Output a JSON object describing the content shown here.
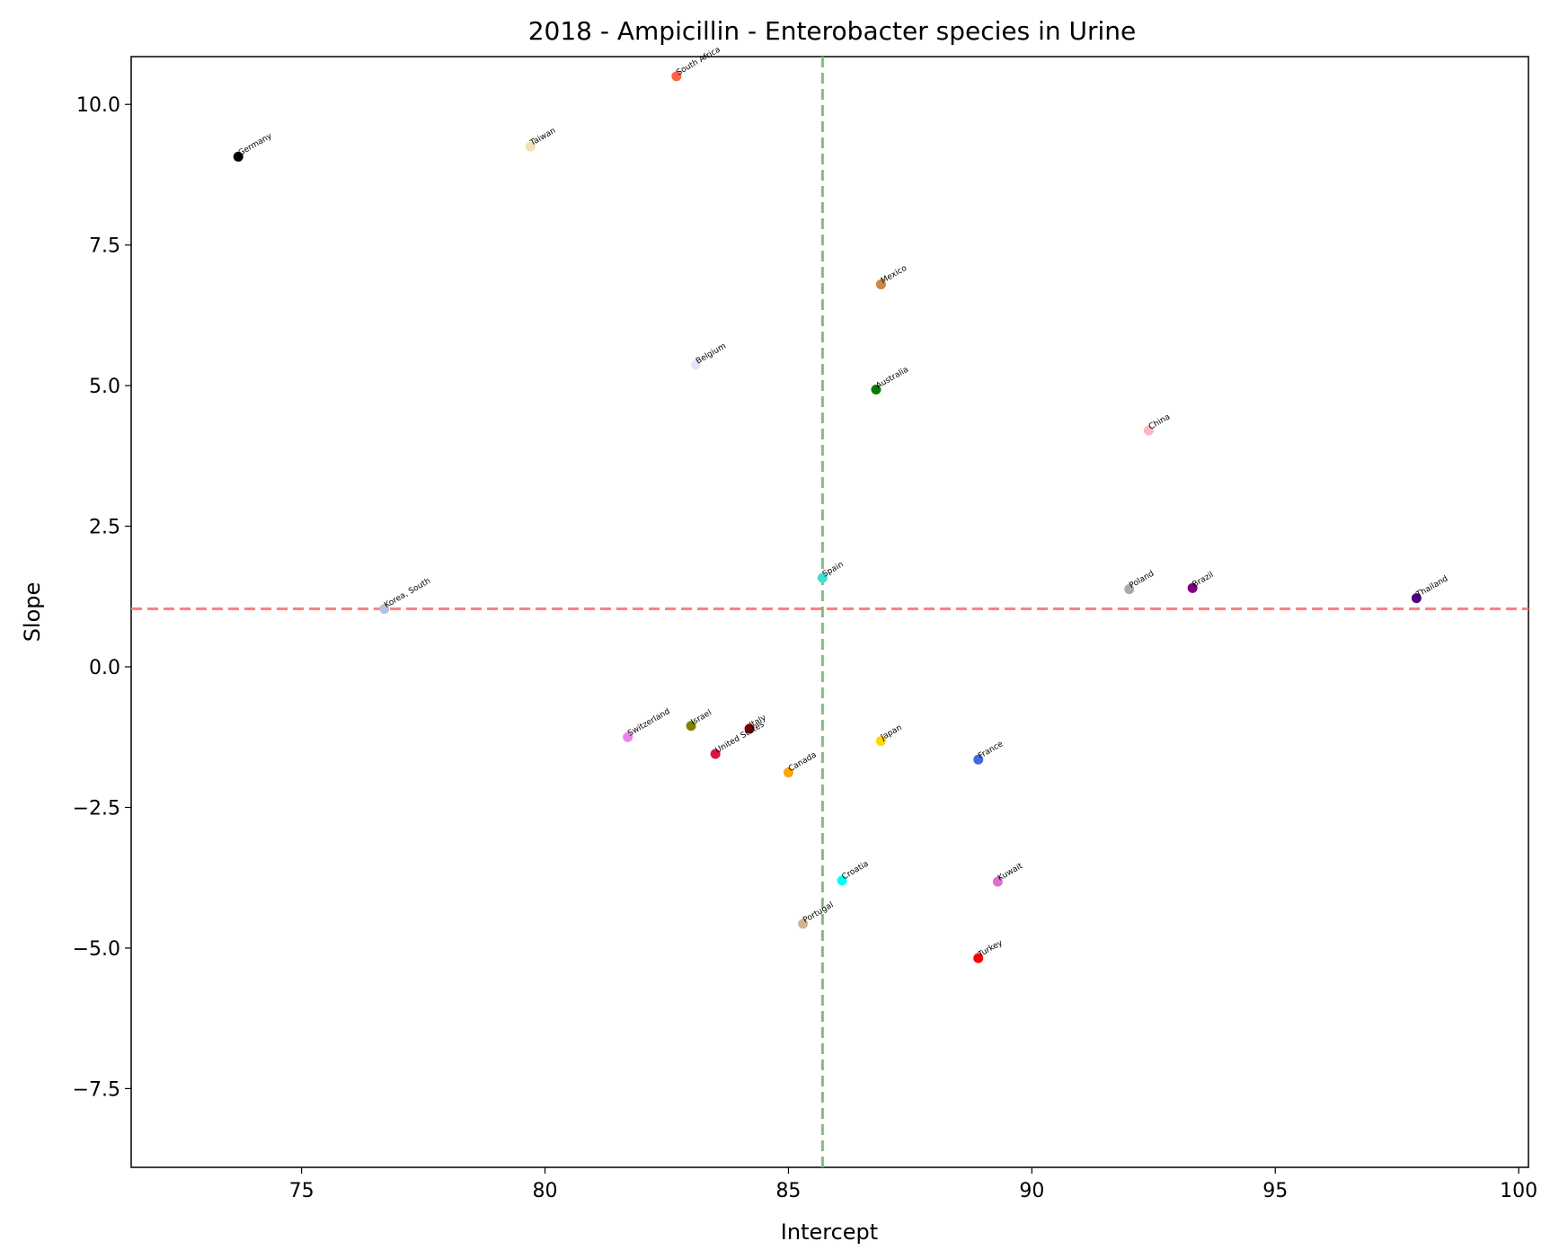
{
  "chart_data": {
    "type": "scatter",
    "title": "2018 - Ampicillin - Enterobacter species in Urine",
    "xlabel": "Intercept",
    "ylabel": "Slope",
    "xlim": [
      71.5,
      100.2
    ],
    "ylim": [
      -8.9,
      10.85
    ],
    "xticks": [
      75,
      80,
      85,
      90,
      95,
      100
    ],
    "yticks": [
      -7.5,
      -5.0,
      -2.5,
      0.0,
      2.5,
      5.0,
      7.5,
      10.0
    ],
    "xtick_labels": [
      "75",
      "80",
      "85",
      "90",
      "95",
      "100"
    ],
    "ytick_labels": [
      "−7.5",
      "−5.0",
      "−2.5",
      "0.0",
      "2.5",
      "5.0",
      "7.5",
      "10.0"
    ],
    "grid": false,
    "reference_lines": {
      "vertical_x": 85.7,
      "vertical_color": "#7fbf7f",
      "horizontal_y": 1.03,
      "horizontal_color": "#ff7f7f"
    },
    "points": [
      {
        "label": "Germany",
        "x": 73.7,
        "y": 9.07,
        "color": "#000000"
      },
      {
        "label": "Taiwan",
        "x": 79.7,
        "y": 9.25,
        "color": "#f5deb3"
      },
      {
        "label": "South Africa",
        "x": 82.7,
        "y": 10.5,
        "color": "#ff6347"
      },
      {
        "label": "Mexico",
        "x": 86.9,
        "y": 6.8,
        "color": "#cd853f"
      },
      {
        "label": "Belgium",
        "x": 83.1,
        "y": 5.37,
        "color": "#e6e6fa"
      },
      {
        "label": "Australia",
        "x": 86.8,
        "y": 4.93,
        "color": "#008000"
      },
      {
        "label": "China",
        "x": 92.4,
        "y": 4.2,
        "color": "#ffb6c1"
      },
      {
        "label": "Spain",
        "x": 85.7,
        "y": 1.58,
        "color": "#40e0d0"
      },
      {
        "label": "Korea, South",
        "x": 76.7,
        "y": 1.03,
        "color": "#b0c4de"
      },
      {
        "label": "Poland",
        "x": 92.0,
        "y": 1.38,
        "color": "#a9a9a9"
      },
      {
        "label": "Brazil",
        "x": 93.3,
        "y": 1.4,
        "color": "#800080"
      },
      {
        "label": "Thailand",
        "x": 97.9,
        "y": 1.22,
        "color": "#4b0082"
      },
      {
        "label": "Switzerland",
        "x": 81.7,
        "y": -1.25,
        "color": "#ee82ee"
      },
      {
        "label": "Israel",
        "x": 83.0,
        "y": -1.05,
        "color": "#808000"
      },
      {
        "label": "Italy",
        "x": 84.2,
        "y": -1.1,
        "color": "#800000"
      },
      {
        "label": "United States",
        "x": 83.5,
        "y": -1.55,
        "color": "#dc143c"
      },
      {
        "label": "Japan",
        "x": 86.9,
        "y": -1.32,
        "color": "#ffd700"
      },
      {
        "label": "Canada",
        "x": 85.0,
        "y": -1.88,
        "color": "#ffa500"
      },
      {
        "label": "France",
        "x": 88.9,
        "y": -1.65,
        "color": "#4169e1"
      },
      {
        "label": "Croatia",
        "x": 86.1,
        "y": -3.8,
        "color": "#00ffff"
      },
      {
        "label": "Kuwait",
        "x": 89.3,
        "y": -3.82,
        "color": "#da70d6"
      },
      {
        "label": "Portugal",
        "x": 85.3,
        "y": -4.57,
        "color": "#d2b48c"
      },
      {
        "label": "Turkey",
        "x": 88.9,
        "y": -5.18,
        "color": "#ff0000"
      }
    ]
  }
}
